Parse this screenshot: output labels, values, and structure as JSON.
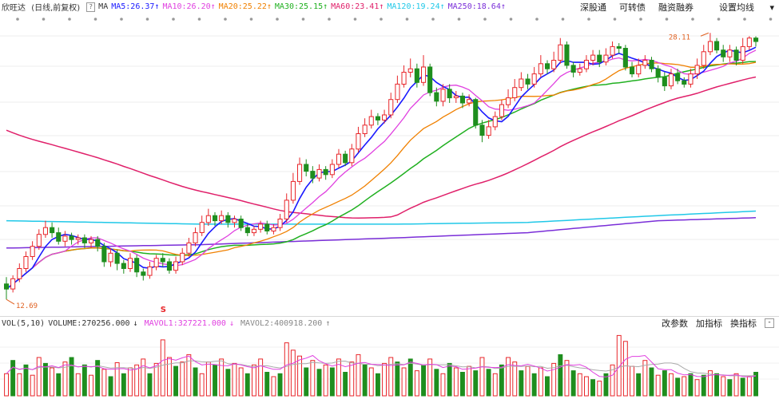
{
  "header": {
    "stock_name": "欣旺达",
    "period": "(日线,前复权)",
    "help": "?",
    "indicator": "MA",
    "ma_labels": [
      {
        "text": "MA5:26.37",
        "arrow": "↑",
        "color": "#1a1aff"
      },
      {
        "text": "MA10:26.20",
        "arrow": "↑",
        "color": "#e040e0"
      },
      {
        "text": "MA20:25.22",
        "arrow": "↑",
        "color": "#f08000"
      },
      {
        "text": "MA30:25.15",
        "arrow": "↑",
        "color": "#20b020"
      },
      {
        "text": "MA60:23.41",
        "arrow": "↑",
        "color": "#e0206a"
      },
      {
        "text": "MA120:19.24",
        "arrow": "↑",
        "color": "#20c8e8"
      },
      {
        "text": "MA250:18.64",
        "arrow": "↑",
        "color": "#7a2ed8"
      }
    ],
    "buttons": [
      "深股通",
      "可转债",
      "融资融券",
      "设置均线"
    ]
  },
  "volume_header": {
    "indicator": "VOL(5,10)",
    "volume_text": "VOLUME:270256.000",
    "volume_arrow": "↓",
    "mavol1_text": "MAVOL1:327221.000",
    "mavol1_arrow": "↓",
    "mavol2_text": "MAVOL2:400918.200",
    "mavol2_arrow": "↑",
    "buttons": [
      "改参数",
      "加指标",
      "换指标"
    ],
    "collapse": "-"
  },
  "annotations": {
    "high_label": "28.11",
    "low_label": "12.69",
    "s_marker": "S"
  },
  "colors": {
    "up": "#e8262a",
    "down": "#1e8e1e",
    "ma5": "#1a1aff",
    "ma10": "#e040e0",
    "ma20": "#f08000",
    "ma30": "#20b020",
    "ma60": "#e0206a",
    "ma120": "#20c8e8",
    "ma250": "#7a2ed8"
  },
  "chart_data": {
    "type": "candlestick",
    "price_range": [
      12.0,
      29.2
    ],
    "candles": [
      [
        13.6,
        13.3,
        14.0,
        12.69
      ],
      [
        13.3,
        13.9,
        14.1,
        13.1
      ],
      [
        13.9,
        14.5,
        14.8,
        13.7
      ],
      [
        14.5,
        15.2,
        15.5,
        14.3
      ],
      [
        15.2,
        15.8,
        16.1,
        15.0
      ],
      [
        15.8,
        16.5,
        16.8,
        15.6
      ],
      [
        16.5,
        16.9,
        17.3,
        16.3
      ],
      [
        16.9,
        16.6,
        17.2,
        16.3
      ],
      [
        16.6,
        16.1,
        16.9,
        15.9
      ],
      [
        16.1,
        16.4,
        16.7,
        15.8
      ],
      [
        16.4,
        16.2,
        16.6,
        15.9
      ],
      [
        16.2,
        16.3,
        16.5,
        15.9
      ],
      [
        16.3,
        16.0,
        16.5,
        15.7
      ],
      [
        16.0,
        16.2,
        16.4,
        15.7
      ],
      [
        16.2,
        15.8,
        16.4,
        15.5
      ],
      [
        15.8,
        14.9,
        16.0,
        14.6
      ],
      [
        14.9,
        15.4,
        15.7,
        14.6
      ],
      [
        15.4,
        14.8,
        15.6,
        14.4
      ],
      [
        14.8,
        14.5,
        15.0,
        14.2
      ],
      [
        14.5,
        15.1,
        15.4,
        14.3
      ],
      [
        15.1,
        14.3,
        15.3,
        14.0
      ],
      [
        14.3,
        14.1,
        14.5,
        13.8
      ],
      [
        14.1,
        14.6,
        14.9,
        13.9
      ],
      [
        14.6,
        15.1,
        15.3,
        14.4
      ],
      [
        15.1,
        14.9,
        15.4,
        14.6
      ],
      [
        14.9,
        14.4,
        15.1,
        14.2
      ],
      [
        14.4,
        14.9,
        15.2,
        14.2
      ],
      [
        14.9,
        15.4,
        15.7,
        14.7
      ],
      [
        15.4,
        16.0,
        16.3,
        15.2
      ],
      [
        16.0,
        16.6,
        16.9,
        15.8
      ],
      [
        16.6,
        17.2,
        17.6,
        16.4
      ],
      [
        17.2,
        17.6,
        18.0,
        17.0
      ],
      [
        17.6,
        17.3,
        17.8,
        17.0
      ],
      [
        17.3,
        17.6,
        17.9,
        17.1
      ],
      [
        17.6,
        17.2,
        17.8,
        16.9
      ],
      [
        17.2,
        17.4,
        17.6,
        16.9
      ],
      [
        17.4,
        16.9,
        17.6,
        16.7
      ],
      [
        16.9,
        16.6,
        17.1,
        16.4
      ],
      [
        16.6,
        16.8,
        17.0,
        16.4
      ],
      [
        16.8,
        17.1,
        17.3,
        16.6
      ],
      [
        17.1,
        16.7,
        17.3,
        16.5
      ],
      [
        16.7,
        16.9,
        17.1,
        16.5
      ],
      [
        16.9,
        17.4,
        17.7,
        16.7
      ],
      [
        17.4,
        18.5,
        18.9,
        17.2
      ],
      [
        18.5,
        19.6,
        20.1,
        18.3
      ],
      [
        19.6,
        20.6,
        21.0,
        19.4
      ],
      [
        20.6,
        20.2,
        20.9,
        19.9
      ],
      [
        20.2,
        19.8,
        20.5,
        19.5
      ],
      [
        19.8,
        20.3,
        20.6,
        19.6
      ],
      [
        20.3,
        20.0,
        20.5,
        19.7
      ],
      [
        20.0,
        20.6,
        20.9,
        19.8
      ],
      [
        20.6,
        21.2,
        21.5,
        20.4
      ],
      [
        21.2,
        20.7,
        21.4,
        20.5
      ],
      [
        20.7,
        21.5,
        21.8,
        20.5
      ],
      [
        21.5,
        22.4,
        22.8,
        21.3
      ],
      [
        22.4,
        22.9,
        23.3,
        22.2
      ],
      [
        22.9,
        23.4,
        23.8,
        22.7
      ],
      [
        23.4,
        23.2,
        23.6,
        22.9
      ],
      [
        23.2,
        23.5,
        23.8,
        23.0
      ],
      [
        23.5,
        24.4,
        24.8,
        23.3
      ],
      [
        24.4,
        25.3,
        25.8,
        24.2
      ],
      [
        25.3,
        26.0,
        26.4,
        25.1
      ],
      [
        26.0,
        26.2,
        26.8,
        25.7
      ],
      [
        26.2,
        25.4,
        26.5,
        25.1
      ],
      [
        25.4,
        26.3,
        27.0,
        25.2
      ],
      [
        26.3,
        24.8,
        26.5,
        24.6
      ],
      [
        24.8,
        24.3,
        25.1,
        24.0
      ],
      [
        24.3,
        25.0,
        25.3,
        24.0
      ],
      [
        25.0,
        24.5,
        25.3,
        24.2
      ],
      [
        24.5,
        24.6,
        24.9,
        24.2
      ],
      [
        24.6,
        24.2,
        24.8,
        23.9
      ],
      [
        24.2,
        24.4,
        24.7,
        24.0
      ],
      [
        24.4,
        22.9,
        24.5,
        22.7
      ],
      [
        22.9,
        22.3,
        23.2,
        21.9
      ],
      [
        22.3,
        22.8,
        23.2,
        22.1
      ],
      [
        22.8,
        23.4,
        23.7,
        22.6
      ],
      [
        23.4,
        24.1,
        24.4,
        23.2
      ],
      [
        24.1,
        24.5,
        25.0,
        23.9
      ],
      [
        24.5,
        25.1,
        25.6,
        24.3
      ],
      [
        25.1,
        25.6,
        26.0,
        24.9
      ],
      [
        25.6,
        25.3,
        25.9,
        25.0
      ],
      [
        25.3,
        25.9,
        26.3,
        25.1
      ],
      [
        25.9,
        26.5,
        27.0,
        25.7
      ],
      [
        26.5,
        26.2,
        26.7,
        25.9
      ],
      [
        26.2,
        26.7,
        27.2,
        26.0
      ],
      [
        26.7,
        27.6,
        28.0,
        26.5
      ],
      [
        27.6,
        26.4,
        27.8,
        26.2
      ],
      [
        26.4,
        26.0,
        26.6,
        25.7
      ],
      [
        26.0,
        26.2,
        26.5,
        25.8
      ],
      [
        26.2,
        26.7,
        27.0,
        26.0
      ],
      [
        26.7,
        27.0,
        27.3,
        26.4
      ],
      [
        27.0,
        26.6,
        27.3,
        26.3
      ],
      [
        26.6,
        27.0,
        27.4,
        26.4
      ],
      [
        27.0,
        27.5,
        27.8,
        26.8
      ],
      [
        27.5,
        27.4,
        27.7,
        27.1
      ],
      [
        27.4,
        26.3,
        27.6,
        26.1
      ],
      [
        26.3,
        25.9,
        26.6,
        25.7
      ],
      [
        25.9,
        26.4,
        26.8,
        25.7
      ],
      [
        26.4,
        26.7,
        27.0,
        26.2
      ],
      [
        26.7,
        26.2,
        26.9,
        26.0
      ],
      [
        26.2,
        25.7,
        26.4,
        25.4
      ],
      [
        25.7,
        25.2,
        26.0,
        24.9
      ],
      [
        25.2,
        25.9,
        26.2,
        25.0
      ],
      [
        25.9,
        25.5,
        26.2,
        25.3
      ],
      [
        25.5,
        25.3,
        25.7,
        25.1
      ],
      [
        25.3,
        25.9,
        26.2,
        25.1
      ],
      [
        25.9,
        26.4,
        26.8,
        25.6
      ],
      [
        26.4,
        27.2,
        27.6,
        26.2
      ],
      [
        27.2,
        27.8,
        28.3,
        27.0
      ],
      [
        27.8,
        27.3,
        28.0,
        27.1
      ],
      [
        27.3,
        26.9,
        27.6,
        26.6
      ],
      [
        26.9,
        27.3,
        27.6,
        26.6
      ],
      [
        27.3,
        26.7,
        27.5,
        26.4
      ],
      [
        26.7,
        27.5,
        28.0,
        26.5
      ],
      [
        27.5,
        28.0,
        28.11,
        27.3
      ],
      [
        28.0,
        27.8,
        28.1,
        27.5
      ]
    ],
    "volumes": [
      [
        300,
        "up"
      ],
      [
        480,
        "down"
      ],
      [
        300,
        "up"
      ],
      [
        420,
        "down"
      ],
      [
        280,
        "up"
      ],
      [
        520,
        "up"
      ],
      [
        440,
        "down"
      ],
      [
        380,
        "up"
      ],
      [
        300,
        "down"
      ],
      [
        460,
        "up"
      ],
      [
        520,
        "down"
      ],
      [
        300,
        "up"
      ],
      [
        420,
        "down"
      ],
      [
        280,
        "up"
      ],
      [
        480,
        "down"
      ],
      [
        360,
        "up"
      ],
      [
        260,
        "down"
      ],
      [
        450,
        "up"
      ],
      [
        300,
        "down"
      ],
      [
        380,
        "up"
      ],
      [
        420,
        "up"
      ],
      [
        500,
        "up"
      ],
      [
        300,
        "down"
      ],
      [
        440,
        "up"
      ],
      [
        760,
        "up"
      ],
      [
        520,
        "up"
      ],
      [
        400,
        "down"
      ],
      [
        460,
        "up"
      ],
      [
        560,
        "up"
      ],
      [
        380,
        "down"
      ],
      [
        300,
        "up"
      ],
      [
        460,
        "up"
      ],
      [
        420,
        "down"
      ],
      [
        500,
        "up"
      ],
      [
        360,
        "down"
      ],
      [
        440,
        "up"
      ],
      [
        380,
        "up"
      ],
      [
        300,
        "down"
      ],
      [
        420,
        "up"
      ],
      [
        500,
        "up"
      ],
      [
        320,
        "down"
      ],
      [
        260,
        "up"
      ],
      [
        300,
        "down"
      ],
      [
        720,
        "up"
      ],
      [
        620,
        "up"
      ],
      [
        540,
        "up"
      ],
      [
        380,
        "down"
      ],
      [
        480,
        "up"
      ],
      [
        360,
        "down"
      ],
      [
        420,
        "up"
      ],
      [
        380,
        "down"
      ],
      [
        500,
        "up"
      ],
      [
        320,
        "down"
      ],
      [
        460,
        "up"
      ],
      [
        560,
        "up"
      ],
      [
        420,
        "down"
      ],
      [
        380,
        "up"
      ],
      [
        300,
        "down"
      ],
      [
        440,
        "up"
      ],
      [
        520,
        "up"
      ],
      [
        460,
        "down"
      ],
      [
        380,
        "up"
      ],
      [
        500,
        "down"
      ],
      [
        340,
        "up"
      ],
      [
        420,
        "down"
      ],
      [
        500,
        "up"
      ],
      [
        360,
        "down"
      ],
      [
        300,
        "up"
      ],
      [
        440,
        "down"
      ],
      [
        380,
        "up"
      ],
      [
        320,
        "down"
      ],
      [
        400,
        "up"
      ],
      [
        340,
        "down"
      ],
      [
        520,
        "up"
      ],
      [
        360,
        "down"
      ],
      [
        300,
        "up"
      ],
      [
        420,
        "down"
      ],
      [
        520,
        "up"
      ],
      [
        460,
        "up"
      ],
      [
        340,
        "down"
      ],
      [
        400,
        "up"
      ],
      [
        300,
        "down"
      ],
      [
        380,
        "up"
      ],
      [
        260,
        "down"
      ],
      [
        440,
        "up"
      ],
      [
        560,
        "down"
      ],
      [
        480,
        "up"
      ],
      [
        340,
        "down"
      ],
      [
        300,
        "up"
      ],
      [
        260,
        "up"
      ],
      [
        220,
        "down"
      ],
      [
        200,
        "up"
      ],
      [
        300,
        "down"
      ],
      [
        420,
        "up"
      ],
      [
        820,
        "up"
      ],
      [
        740,
        "up"
      ],
      [
        400,
        "up"
      ],
      [
        300,
        "down"
      ],
      [
        480,
        "up"
      ],
      [
        380,
        "down"
      ],
      [
        280,
        "up"
      ],
      [
        340,
        "down"
      ],
      [
        300,
        "up"
      ],
      [
        240,
        "down"
      ],
      [
        260,
        "up"
      ],
      [
        300,
        "down"
      ],
      [
        220,
        "up"
      ],
      [
        280,
        "down"
      ],
      [
        340,
        "up"
      ],
      [
        300,
        "down"
      ],
      [
        260,
        "up"
      ],
      [
        220,
        "down"
      ],
      [
        300,
        "up"
      ],
      [
        240,
        "down"
      ],
      [
        260,
        "up"
      ],
      [
        320,
        "down"
      ]
    ],
    "volume_range": [
      0,
      900
    ],
    "ma_lines": {
      "ma60_start": 22.6,
      "ma120": [
        [
          0,
          17.3
        ],
        [
          30,
          17.1
        ],
        [
          60,
          17.1
        ],
        [
          80,
          17.2
        ],
        [
          100,
          17.6
        ],
        [
          117,
          17.9
        ]
      ],
      "ma250": [
        [
          0,
          15.7
        ],
        [
          30,
          15.9
        ],
        [
          60,
          16.3
        ],
        [
          80,
          16.6
        ],
        [
          100,
          17.3
        ],
        [
          117,
          17.5
        ]
      ]
    }
  }
}
